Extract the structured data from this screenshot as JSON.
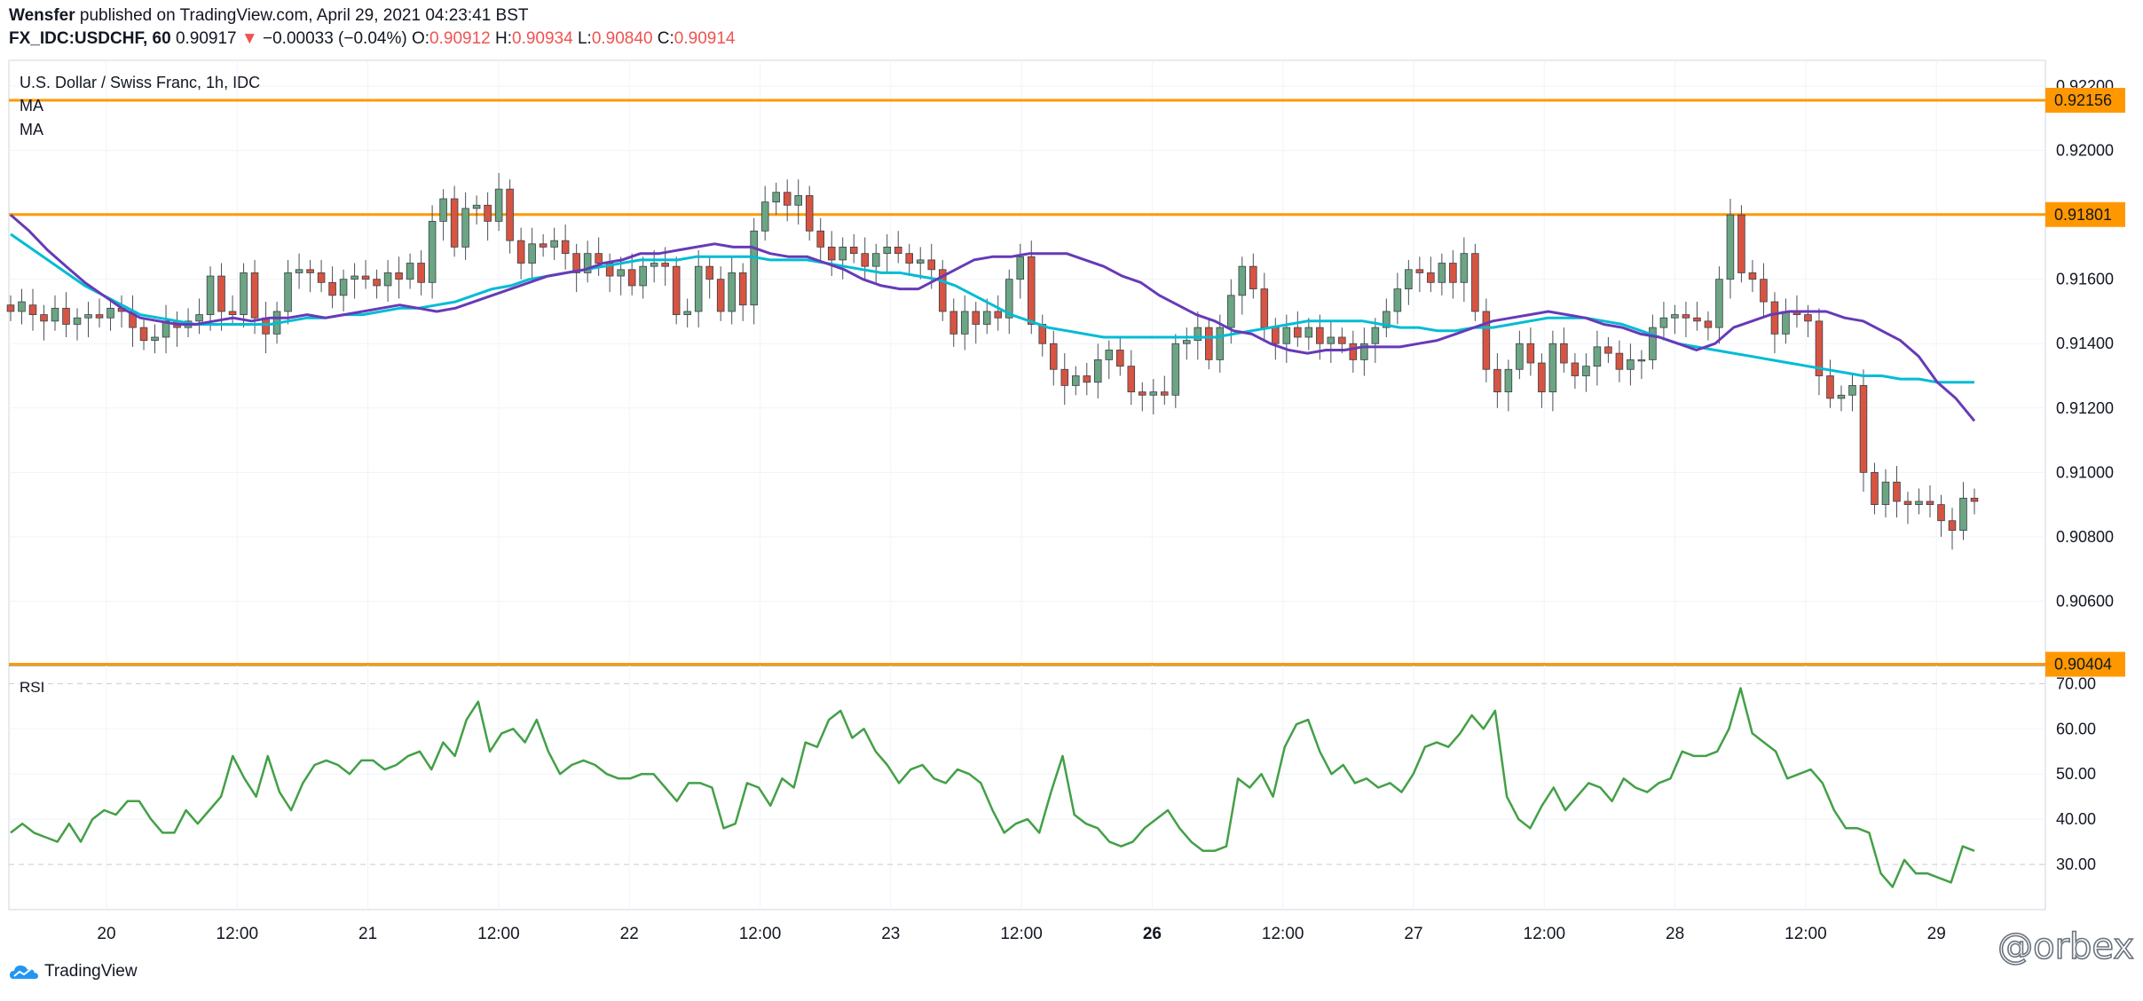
{
  "header": {
    "author": "Wensfer",
    "published_text": "published on TradingView.com, April 29, 2021 04:23:41 BST",
    "symbol": "FX_IDC:USDCHF, 60",
    "last": "0.90917",
    "change": "−0.00033 (−0.04%)",
    "o_label": "O:",
    "o_value": "0.90912",
    "h_label": "H:",
    "h_value": "0.90934",
    "l_label": "L:",
    "l_value": "0.90840",
    "c_label": "C:",
    "c_value": "0.90914"
  },
  "legend": {
    "title": "U.S. Dollar / Swiss Franc, 1h, IDC",
    "ma1": "MA",
    "ma2": "MA",
    "rsi": "RSI"
  },
  "footer": {
    "brand": "TradingView"
  },
  "watermark": "@orbex",
  "colors": {
    "up": "#6ba583",
    "down": "#d75442",
    "ma_fast": "#673ab7",
    "ma_slow": "#00bcd4",
    "level": "#ff9800",
    "rsi": "#43a047",
    "grid": "#f0f3fa"
  },
  "chart_data": [
    {
      "type": "candlestick",
      "title": "U.S. Dollar / Swiss Franc, 1h, IDC",
      "ylim": [
        0.904,
        0.9228
      ],
      "y_ticks": [
        "0.92200",
        "0.92000",
        "0.91800",
        "0.91600",
        "0.91400",
        "0.91200",
        "0.91000",
        "0.90800",
        "0.90600"
      ],
      "x_ticks": [
        "20",
        "12:00",
        "21",
        "12:00",
        "22",
        "12:00",
        "23",
        "12:00",
        "26",
        "12:00",
        "27",
        "12:00",
        "28",
        "12:00",
        "29"
      ],
      "levels": [
        {
          "value": 0.92156,
          "label": "0.92156"
        },
        {
          "value": 0.91801,
          "label": "0.91801"
        },
        {
          "value": 0.90404,
          "label": "0.90404"
        }
      ],
      "candles": [
        [
          0.9152,
          0.915
        ],
        [
          0.915,
          0.9153
        ],
        [
          0.9152,
          0.9149
        ],
        [
          0.9149,
          0.9147
        ],
        [
          0.9147,
          0.9151
        ],
        [
          0.9151,
          0.9146
        ],
        [
          0.9146,
          0.9148
        ],
        [
          0.9148,
          0.9149
        ],
        [
          0.9149,
          0.9148
        ],
        [
          0.9148,
          0.9151
        ],
        [
          0.9151,
          0.915
        ],
        [
          0.915,
          0.9145
        ],
        [
          0.9145,
          0.9141
        ],
        [
          0.9141,
          0.9142
        ],
        [
          0.9142,
          0.9147
        ],
        [
          0.9147,
          0.9145
        ],
        [
          0.9145,
          0.9147
        ],
        [
          0.9147,
          0.9149
        ],
        [
          0.9149,
          0.9161
        ],
        [
          0.9161,
          0.915
        ],
        [
          0.915,
          0.9149
        ],
        [
          0.9149,
          0.9162
        ],
        [
          0.9162,
          0.9148
        ],
        [
          0.9148,
          0.9143
        ],
        [
          0.9143,
          0.915
        ],
        [
          0.915,
          0.9162
        ],
        [
          0.9162,
          0.9163
        ],
        [
          0.9163,
          0.9162
        ],
        [
          0.9162,
          0.9159
        ],
        [
          0.9159,
          0.9155
        ],
        [
          0.9155,
          0.916
        ],
        [
          0.916,
          0.9161
        ],
        [
          0.9161,
          0.916
        ],
        [
          0.916,
          0.9158
        ],
        [
          0.9158,
          0.9162
        ],
        [
          0.9162,
          0.916
        ],
        [
          0.916,
          0.9165
        ],
        [
          0.9165,
          0.9159
        ],
        [
          0.9159,
          0.9178
        ],
        [
          0.9178,
          0.9185
        ],
        [
          0.9185,
          0.917
        ],
        [
          0.917,
          0.9182
        ],
        [
          0.9182,
          0.9183
        ],
        [
          0.9183,
          0.9178
        ],
        [
          0.9178,
          0.9188
        ],
        [
          0.9188,
          0.9172
        ],
        [
          0.9172,
          0.9165
        ],
        [
          0.9165,
          0.9171
        ],
        [
          0.9171,
          0.917
        ],
        [
          0.917,
          0.9172
        ],
        [
          0.9172,
          0.9168
        ],
        [
          0.9168,
          0.9162
        ],
        [
          0.9162,
          0.9168
        ],
        [
          0.9168,
          0.9165
        ],
        [
          0.9165,
          0.9161
        ],
        [
          0.9161,
          0.9163
        ],
        [
          0.9163,
          0.9158
        ],
        [
          0.9158,
          0.9164
        ],
        [
          0.9164,
          0.9165
        ],
        [
          0.9165,
          0.9164
        ],
        [
          0.9164,
          0.9149
        ],
        [
          0.9149,
          0.915
        ],
        [
          0.915,
          0.9164
        ],
        [
          0.9164,
          0.916
        ],
        [
          0.916,
          0.915
        ],
        [
          0.915,
          0.9162
        ],
        [
          0.9162,
          0.9152
        ],
        [
          0.9152,
          0.9175
        ],
        [
          0.9175,
          0.9184
        ],
        [
          0.9184,
          0.9187
        ],
        [
          0.9187,
          0.9183
        ],
        [
          0.9183,
          0.9186
        ],
        [
          0.9186,
          0.9175
        ],
        [
          0.9175,
          0.917
        ],
        [
          0.917,
          0.9166
        ],
        [
          0.9166,
          0.917
        ],
        [
          0.917,
          0.9168
        ],
        [
          0.9168,
          0.9164
        ],
        [
          0.9164,
          0.9168
        ],
        [
          0.9168,
          0.917
        ],
        [
          0.917,
          0.9168
        ],
        [
          0.9168,
          0.9165
        ],
        [
          0.9165,
          0.9166
        ],
        [
          0.9166,
          0.9163
        ],
        [
          0.9163,
          0.915
        ],
        [
          0.915,
          0.9143
        ],
        [
          0.9143,
          0.915
        ],
        [
          0.915,
          0.9146
        ],
        [
          0.9146,
          0.915
        ],
        [
          0.915,
          0.9148
        ],
        [
          0.9148,
          0.916
        ],
        [
          0.916,
          0.9167
        ],
        [
          0.9167,
          0.9146
        ],
        [
          0.9146,
          0.914
        ],
        [
          0.914,
          0.9132
        ],
        [
          0.9132,
          0.9127
        ],
        [
          0.9127,
          0.913
        ],
        [
          0.913,
          0.9128
        ],
        [
          0.9128,
          0.9135
        ],
        [
          0.9135,
          0.9138
        ],
        [
          0.9138,
          0.9133
        ],
        [
          0.9133,
          0.9125
        ],
        [
          0.9125,
          0.9124
        ],
        [
          0.9124,
          0.9125
        ],
        [
          0.9125,
          0.9124
        ],
        [
          0.9124,
          0.914
        ],
        [
          0.914,
          0.9141
        ],
        [
          0.9141,
          0.9145
        ],
        [
          0.9145,
          0.9135
        ],
        [
          0.9135,
          0.9145
        ],
        [
          0.9145,
          0.9155
        ],
        [
          0.9155,
          0.9164
        ],
        [
          0.9164,
          0.9157
        ],
        [
          0.9157,
          0.9145
        ],
        [
          0.9145,
          0.914
        ],
        [
          0.914,
          0.9145
        ],
        [
          0.9145,
          0.9142
        ],
        [
          0.9142,
          0.9145
        ],
        [
          0.9145,
          0.914
        ],
        [
          0.914,
          0.9142
        ],
        [
          0.9142,
          0.914
        ],
        [
          0.914,
          0.9135
        ],
        [
          0.9135,
          0.914
        ],
        [
          0.914,
          0.9145
        ],
        [
          0.9145,
          0.915
        ],
        [
          0.915,
          0.9157
        ],
        [
          0.9157,
          0.9163
        ],
        [
          0.9163,
          0.9162
        ],
        [
          0.9162,
          0.9159
        ],
        [
          0.9159,
          0.9165
        ],
        [
          0.9165,
          0.9159
        ],
        [
          0.9159,
          0.9168
        ],
        [
          0.9168,
          0.915
        ],
        [
          0.915,
          0.9132
        ],
        [
          0.9132,
          0.9125
        ],
        [
          0.9125,
          0.9132
        ],
        [
          0.9132,
          0.914
        ],
        [
          0.914,
          0.9134
        ],
        [
          0.9134,
          0.9125
        ],
        [
          0.9125,
          0.914
        ],
        [
          0.914,
          0.9134
        ],
        [
          0.9134,
          0.913
        ],
        [
          0.913,
          0.9133
        ],
        [
          0.9133,
          0.9139
        ],
        [
          0.9139,
          0.9137
        ],
        [
          0.9137,
          0.9132
        ],
        [
          0.9132,
          0.9135
        ],
        [
          0.9135,
          0.9135
        ],
        [
          0.9135,
          0.9145
        ],
        [
          0.9145,
          0.9148
        ],
        [
          0.9148,
          0.9149
        ],
        [
          0.9149,
          0.9148
        ],
        [
          0.9148,
          0.9147
        ],
        [
          0.9147,
          0.9145
        ],
        [
          0.9145,
          0.916
        ],
        [
          0.916,
          0.918
        ],
        [
          0.918,
          0.9162
        ],
        [
          0.9162,
          0.916
        ],
        [
          0.916,
          0.9153
        ],
        [
          0.9153,
          0.9143
        ],
        [
          0.9143,
          0.915
        ],
        [
          0.915,
          0.9149
        ],
        [
          0.9149,
          0.9147
        ],
        [
          0.9147,
          0.913
        ],
        [
          0.913,
          0.9123
        ],
        [
          0.9123,
          0.9124
        ],
        [
          0.9124,
          0.9127
        ],
        [
          0.9127,
          0.91
        ],
        [
          0.91,
          0.909
        ],
        [
          0.909,
          0.9097
        ],
        [
          0.9097,
          0.9091
        ],
        [
          0.9091,
          0.909
        ],
        [
          0.909,
          0.9091
        ],
        [
          0.9091,
          0.909
        ],
        [
          0.909,
          0.9085
        ],
        [
          0.9085,
          0.9082
        ],
        [
          0.9082,
          0.9092
        ],
        [
          0.9092,
          0.9091
        ]
      ],
      "ma_fast": [
        0.918,
        0.9175,
        0.9169,
        0.9164,
        0.9159,
        0.9155,
        0.9151,
        0.9148,
        0.9147,
        0.9146,
        0.9146,
        0.9147,
        0.9148,
        0.9147,
        0.9148,
        0.9148,
        0.9149,
        0.9148,
        0.9149,
        0.915,
        0.9151,
        0.9152,
        0.9151,
        0.915,
        0.9151,
        0.9153,
        0.9155,
        0.9157,
        0.9159,
        0.9161,
        0.9162,
        0.9163,
        0.9165,
        0.9166,
        0.9168,
        0.9168,
        0.9169,
        0.917,
        0.9171,
        0.917,
        0.917,
        0.9168,
        0.9167,
        0.9167,
        0.9165,
        0.9163,
        0.916,
        0.9158,
        0.9157,
        0.9157,
        0.916,
        0.9163,
        0.9166,
        0.9167,
        0.9167,
        0.9168,
        0.9168,
        0.9168,
        0.9166,
        0.9164,
        0.9161,
        0.9159,
        0.9155,
        0.9152,
        0.9149,
        0.9147,
        0.9144,
        0.9143,
        0.914,
        0.9138,
        0.9137,
        0.9138,
        0.9138,
        0.9139,
        0.9139,
        0.9139,
        0.914,
        0.9141,
        0.9143,
        0.9145,
        0.9147,
        0.9148,
        0.9149,
        0.915,
        0.9149,
        0.9148,
        0.9146,
        0.9145,
        0.9143,
        0.9142,
        0.914,
        0.9138,
        0.914,
        0.9145,
        0.9147,
        0.9149,
        0.915,
        0.915,
        0.915,
        0.9148,
        0.9147,
        0.9144,
        0.9141,
        0.9136,
        0.9128,
        0.9123,
        0.9116
      ],
      "ma_slow": [
        0.9174,
        0.917,
        0.9166,
        0.9162,
        0.9158,
        0.9155,
        0.9152,
        0.9149,
        0.9148,
        0.9147,
        0.9146,
        0.9146,
        0.9146,
        0.9146,
        0.9146,
        0.9147,
        0.9148,
        0.9148,
        0.9149,
        0.9149,
        0.915,
        0.9151,
        0.9151,
        0.9152,
        0.9153,
        0.9155,
        0.9157,
        0.9158,
        0.916,
        0.9161,
        0.9162,
        0.9163,
        0.9164,
        0.9165,
        0.9166,
        0.9166,
        0.9166,
        0.9167,
        0.9167,
        0.9167,
        0.9167,
        0.9166,
        0.9166,
        0.9166,
        0.9165,
        0.9164,
        0.9163,
        0.9162,
        0.9162,
        0.9161,
        0.916,
        0.9158,
        0.9155,
        0.9152,
        0.9149,
        0.9147,
        0.9145,
        0.9144,
        0.9143,
        0.9142,
        0.9142,
        0.9142,
        0.9142,
        0.9142,
        0.9142,
        0.9142,
        0.9143,
        0.9144,
        0.9145,
        0.9146,
        0.9147,
        0.9147,
        0.9147,
        0.9147,
        0.9146,
        0.9145,
        0.9145,
        0.9144,
        0.9144,
        0.9145,
        0.9145,
        0.9146,
        0.9147,
        0.9148,
        0.9148,
        0.9148,
        0.9147,
        0.9146,
        0.9144,
        0.9142,
        0.914,
        0.9139,
        0.9138,
        0.9137,
        0.9136,
        0.9135,
        0.9134,
        0.9133,
        0.9132,
        0.9131,
        0.913,
        0.913,
        0.9129,
        0.9129,
        0.9128,
        0.9128,
        0.9128
      ]
    },
    {
      "type": "line",
      "title": "RSI",
      "ylim": [
        20,
        74
      ],
      "y_ticks": [
        "70.00",
        "60.00",
        "50.00",
        "40.00",
        "30.00"
      ],
      "series": [
        {
          "values": [
            37,
            39,
            37,
            36,
            35,
            39,
            35,
            40,
            42,
            41,
            44,
            44,
            40,
            37,
            37,
            42,
            39,
            42,
            45,
            54,
            49,
            45,
            54,
            46,
            42,
            48,
            52,
            53,
            52,
            50,
            53,
            53,
            51,
            52,
            54,
            55,
            51,
            57,
            54,
            62,
            66,
            55,
            59,
            60,
            57,
            62,
            55,
            50,
            52,
            53,
            52,
            50,
            49,
            49,
            50,
            50,
            47,
            44,
            48,
            48,
            47,
            38,
            39,
            48,
            47,
            43,
            49,
            47,
            57,
            56,
            62,
            64,
            58,
            60,
            55,
            52,
            48,
            51,
            52,
            49,
            48,
            51,
            50,
            48,
            42,
            37,
            39,
            40,
            37,
            46,
            54,
            41,
            39,
            38,
            35,
            34,
            35,
            38,
            40,
            42,
            38,
            35,
            33,
            33,
            34,
            49,
            47,
            50,
            45,
            56,
            61,
            62,
            55,
            50,
            52,
            48,
            49,
            47,
            48,
            46,
            50,
            56,
            57,
            56,
            59,
            63,
            60,
            64,
            45,
            40,
            38,
            43,
            47,
            42,
            45,
            48,
            47,
            44,
            49,
            47,
            46,
            48,
            49,
            55,
            54,
            54,
            55,
            60,
            69,
            59,
            57,
            55,
            49,
            50,
            51,
            48,
            42,
            38,
            38,
            37,
            28,
            25,
            31,
            28,
            28,
            27,
            26,
            34,
            33
          ]
        }
      ]
    }
  ]
}
